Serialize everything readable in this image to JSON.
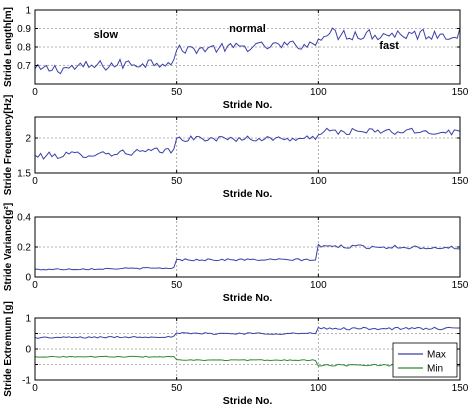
{
  "colors": {
    "series_main": "#3b3fa8",
    "max": "#3b3fa8",
    "min": "#2e8b2e",
    "grid": "#9a9a9a"
  },
  "chart_data": [
    {
      "type": "line",
      "xlabel": "Stride No.",
      "ylabel": "Stride Length[m]",
      "xlim": [
        0,
        150
      ],
      "ylim": [
        0.6,
        1.0
      ],
      "xticks": [
        0,
        50,
        100,
        150
      ],
      "yticks": [
        0.7,
        0.8,
        0.9,
        1
      ],
      "yticklabels": [
        "0.7",
        "0.8",
        "0.9",
        "1"
      ],
      "grid": true,
      "annotations": [
        {
          "text": "slow",
          "x": 25,
          "y": 0.85
        },
        {
          "text": "normal",
          "x": 75,
          "y": 0.88
        },
        {
          "text": "fast",
          "x": 125,
          "y": 0.79
        }
      ],
      "series": [
        {
          "segments": [
            {
              "start": 0,
              "end": 49,
              "mean": 0.7,
              "noise": 0.03,
              "trend": 0.05
            },
            {
              "start": 50,
              "end": 99,
              "mean": 0.8,
              "noise": 0.025,
              "trend": 0.03
            },
            {
              "start": 100,
              "end": 150,
              "mean": 0.87,
              "noise": 0.035,
              "trend": 0.0
            }
          ],
          "color_key": "series_main"
        }
      ]
    },
    {
      "type": "line",
      "xlabel": "Stride No.",
      "ylabel": "Stride Frequency[Hz]",
      "xlim": [
        0,
        150
      ],
      "ylim": [
        1.5,
        2.3
      ],
      "xticks": [
        0,
        50,
        100,
        150
      ],
      "yticks": [
        1.5,
        2
      ],
      "yticklabels": [
        "1.5",
        "2"
      ],
      "grid": true,
      "series": [
        {
          "segments": [
            {
              "start": 0,
              "end": 49,
              "mean": 1.78,
              "noise": 0.05,
              "trend": 0.08
            },
            {
              "start": 50,
              "end": 99,
              "mean": 1.99,
              "noise": 0.04,
              "trend": 0.0
            },
            {
              "start": 100,
              "end": 150,
              "mean": 2.09,
              "noise": 0.05,
              "trend": 0.0
            }
          ],
          "color_key": "series_main"
        }
      ]
    },
    {
      "type": "line",
      "xlabel": "Stride No.",
      "ylabel": "Stride Variance[g²]",
      "xlim": [
        0,
        150
      ],
      "ylim": [
        0,
        0.4
      ],
      "xticks": [
        0,
        50,
        100,
        150
      ],
      "yticks": [
        0,
        0.2,
        0.4
      ],
      "yticklabels": [
        "0",
        "0.2",
        "0.4"
      ],
      "grid": true,
      "series": [
        {
          "segments": [
            {
              "start": 0,
              "end": 49,
              "mean": 0.055,
              "noise": 0.005,
              "trend": 0.01
            },
            {
              "start": 50,
              "end": 99,
              "mean": 0.115,
              "noise": 0.007,
              "trend": 0.0
            },
            {
              "start": 100,
              "end": 150,
              "mean": 0.2,
              "noise": 0.012,
              "trend": -0.01
            }
          ],
          "color_key": "series_main"
        }
      ]
    },
    {
      "type": "line",
      "xlabel": "Stride No.",
      "ylabel": "Stride Extremum [g]",
      "xlim": [
        0,
        150
      ],
      "ylim": [
        -1,
        1
      ],
      "xticks": [
        0,
        50,
        100,
        150
      ],
      "yticks": [
        -1,
        -0.5,
        0,
        0.5,
        1
      ],
      "yticklabels": [
        "-1",
        "",
        "0",
        "",
        "1"
      ],
      "grid": true,
      "legend": {
        "placement": "bottom-right",
        "entries": [
          "Max",
          "Min"
        ]
      },
      "series": [
        {
          "name": "Max",
          "segments": [
            {
              "start": 0,
              "end": 49,
              "mean": 0.38,
              "noise": 0.025,
              "trend": 0.03
            },
            {
              "start": 50,
              "end": 99,
              "mean": 0.5,
              "noise": 0.03,
              "trend": 0.0
            },
            {
              "start": 100,
              "end": 150,
              "mean": 0.66,
              "noise": 0.04,
              "trend": 0.0
            }
          ],
          "color_key": "max"
        },
        {
          "name": "Min",
          "segments": [
            {
              "start": 0,
              "end": 49,
              "mean": -0.25,
              "noise": 0.015,
              "trend": 0.0
            },
            {
              "start": 50,
              "end": 99,
              "mean": -0.36,
              "noise": 0.015,
              "trend": 0.0
            },
            {
              "start": 100,
              "end": 150,
              "mean": -0.52,
              "noise": 0.03,
              "trend": 0.0
            }
          ],
          "color_key": "min"
        }
      ]
    }
  ]
}
